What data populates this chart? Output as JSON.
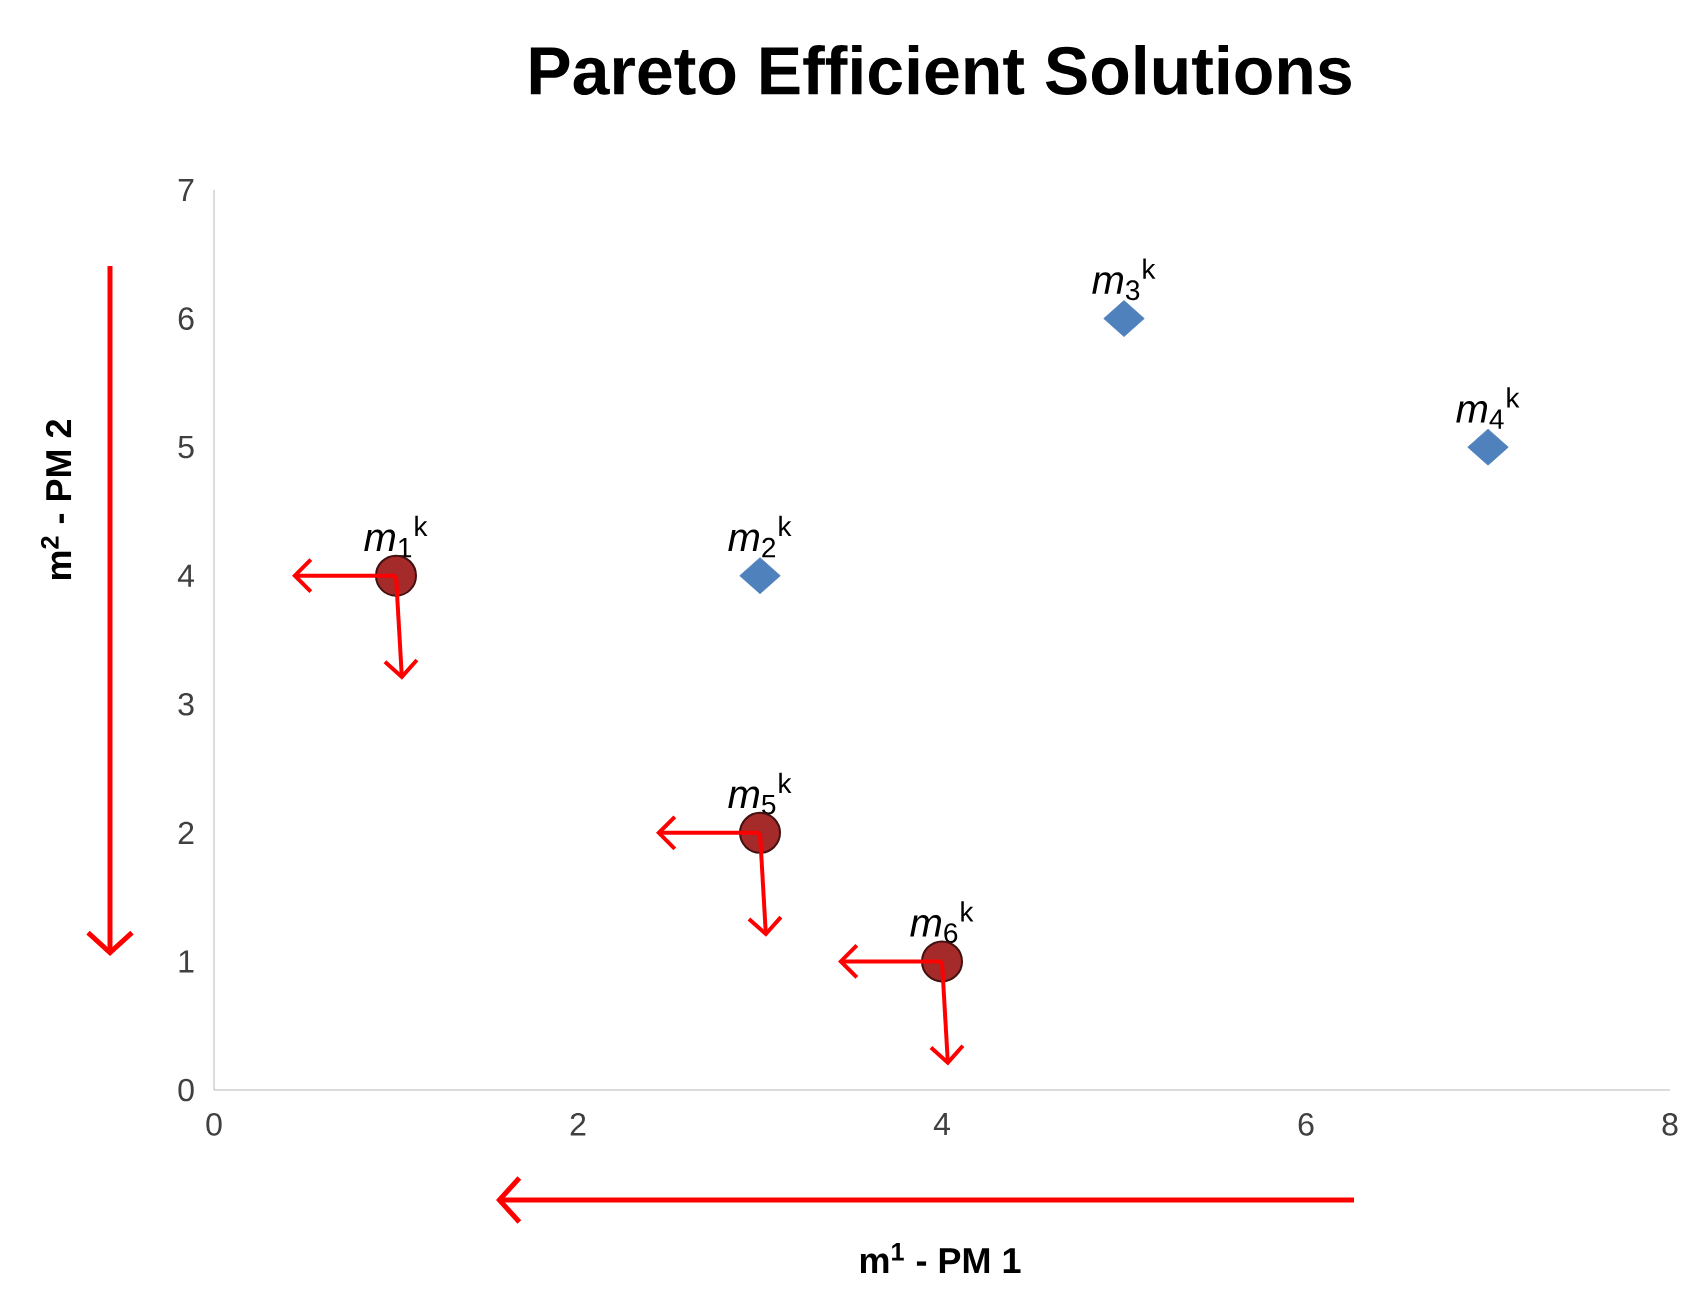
{
  "chart_data": {
    "type": "scatter",
    "title": "Pareto Efficient Solutions",
    "xlabel": "m$^{1}$ - PM 1",
    "ylabel": "m$^{2}$ - PM 2",
    "xlim": [
      0,
      8
    ],
    "ylim": [
      0,
      7
    ],
    "xticks": [
      0,
      2,
      4,
      6,
      8
    ],
    "yticks": [
      0,
      1,
      2,
      3,
      4,
      5,
      6,
      7
    ],
    "series": [
      {
        "color": "#4f81bd",
        "marker": "diamond",
        "x": [
          3,
          5,
          7
        ],
        "values": [
          4,
          6,
          5
        ]
      },
      {
        "color": "#a52a2a",
        "marker": "circle",
        "x": [
          1,
          3,
          4
        ],
        "values": [
          4,
          2,
          1
        ]
      }
    ],
    "annotations": [
      {
        "text": "*m*$_{1}$$^{k}$",
        "x": 1,
        "y": 4
      },
      {
        "text": "*m*$_{2}$$^{k}$",
        "x": 3,
        "y": 4
      },
      {
        "text": "*m*$_{3}$$^{k}$",
        "x": 5,
        "y": 6
      },
      {
        "text": "*m*$_{4}$$^{k}$",
        "x": 7,
        "y": 5
      },
      {
        "text": "*m*$_{5}$$^{k}$",
        "x": 3,
        "y": 2
      },
      {
        "text": "*m*$_{6}$$^{k}$",
        "x": 4,
        "y": 1
      }
    ]
  }
}
